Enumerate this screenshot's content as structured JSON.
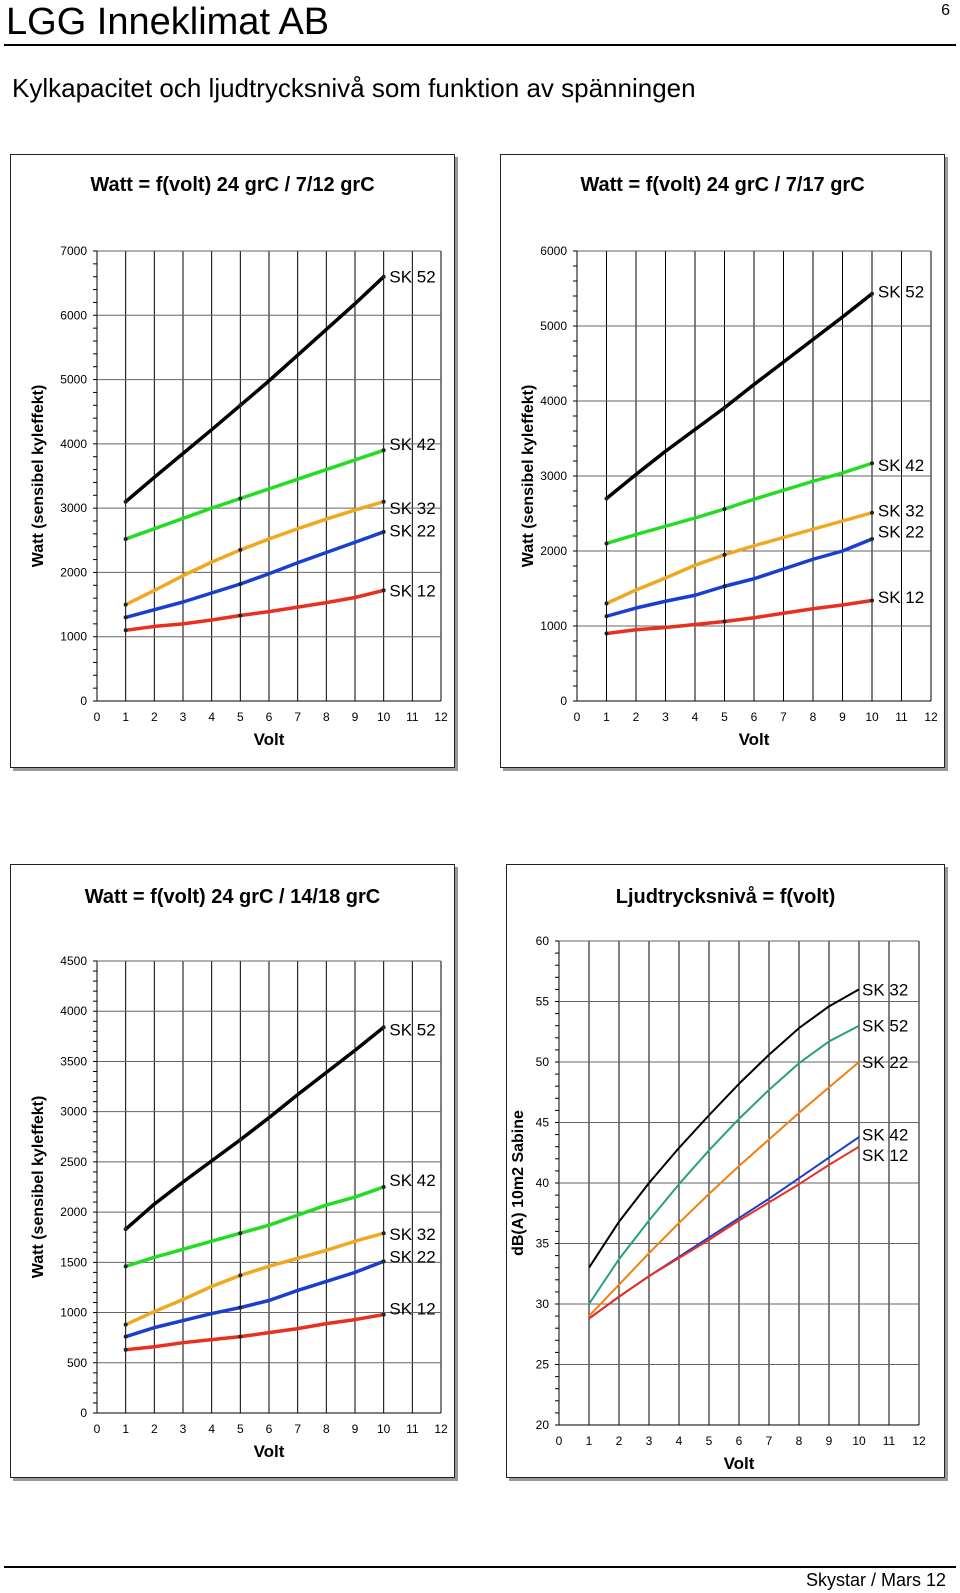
{
  "header": {
    "company": "LGG Inneklimat AB",
    "page_number": "6"
  },
  "subtitle": "Kylkapacitet och ljudtrycksnivå som funktion av spänningen",
  "footer": {
    "text": "Skystar / Mars 12"
  },
  "colors": {
    "SK 52": "#000000",
    "SK 42": "#22dd22",
    "SK 32": "#f0a820",
    "SK 22": "#1a3fd0",
    "SK 12": "#e83020",
    "noise_SK 32": "#000000",
    "noise_SK 52": "#2aa07a",
    "noise_SK 22": "#f08010",
    "noise_SK 42": "#1a3fd0",
    "noise_SK 12": "#e83020"
  },
  "chart_data": [
    {
      "type": "line",
      "title": "Watt = f(volt)  24 grC / 7/12 grC",
      "xlabel": "Volt",
      "ylabel": "Watt (sensibel kyleffekt)",
      "xlim": [
        0,
        12
      ],
      "ylim": [
        0,
        7000
      ],
      "xticks": [
        0,
        1,
        2,
        3,
        4,
        5,
        6,
        7,
        8,
        9,
        10,
        11,
        12
      ],
      "yticks": [
        0,
        1000,
        2000,
        3000,
        4000,
        5000,
        6000,
        7000
      ],
      "x": [
        1,
        2,
        3,
        4,
        5,
        6,
        7,
        8,
        9,
        10
      ],
      "series": [
        {
          "name": "SK 52",
          "values": [
            3100,
            3480,
            3850,
            4220,
            4600,
            4980,
            5380,
            5780,
            6180,
            6600
          ]
        },
        {
          "name": "SK 42",
          "values": [
            2520,
            2680,
            2840,
            3000,
            3150,
            3300,
            3450,
            3600,
            3750,
            3900
          ]
        },
        {
          "name": "SK 32",
          "values": [
            1500,
            1720,
            1950,
            2160,
            2350,
            2520,
            2680,
            2830,
            2970,
            3100
          ]
        },
        {
          "name": "SK 22",
          "values": [
            1300,
            1420,
            1540,
            1680,
            1820,
            1980,
            2150,
            2310,
            2470,
            2630
          ]
        },
        {
          "name": "SK 12",
          "values": [
            1100,
            1160,
            1200,
            1260,
            1330,
            1390,
            1460,
            1530,
            1610,
            1720
          ]
        }
      ],
      "labels": [
        {
          "text": "SK 52",
          "y": 6600
        },
        {
          "text": "SK 42",
          "y": 4000
        },
        {
          "text": "SK 32",
          "y": 3000
        },
        {
          "text": "SK 22",
          "y": 2650
        },
        {
          "text": "SK 12",
          "y": 1720
        }
      ]
    },
    {
      "type": "line",
      "title": "Watt = f(volt)  24 grC / 7/17 grC",
      "xlabel": "Volt",
      "ylabel": "Watt (sensibel kyleffekt)",
      "xlim": [
        0,
        12
      ],
      "ylim": [
        0,
        6000
      ],
      "xticks": [
        0,
        1,
        2,
        3,
        4,
        5,
        6,
        7,
        8,
        9,
        10,
        11,
        12
      ],
      "yticks": [
        0,
        1000,
        2000,
        3000,
        4000,
        5000,
        6000
      ],
      "x": [
        1,
        2,
        3,
        4,
        5,
        6,
        7,
        8,
        9,
        10
      ],
      "series": [
        {
          "name": "SK 52",
          "values": [
            2700,
            3020,
            3330,
            3620,
            3910,
            4220,
            4520,
            4820,
            5120,
            5430
          ]
        },
        {
          "name": "SK 42",
          "values": [
            2100,
            2220,
            2330,
            2440,
            2560,
            2690,
            2810,
            2930,
            3040,
            3170
          ]
        },
        {
          "name": "SK 32",
          "values": [
            1300,
            1480,
            1640,
            1810,
            1950,
            2070,
            2180,
            2290,
            2400,
            2510
          ]
        },
        {
          "name": "SK 22",
          "values": [
            1130,
            1240,
            1330,
            1410,
            1530,
            1630,
            1760,
            1890,
            2000,
            2160
          ]
        },
        {
          "name": "SK 12",
          "values": [
            900,
            950,
            980,
            1020,
            1060,
            1110,
            1170,
            1230,
            1280,
            1340
          ]
        }
      ],
      "labels": [
        {
          "text": "SK 52",
          "y": 5460
        },
        {
          "text": "SK 42",
          "y": 3150
        },
        {
          "text": "SK 32",
          "y": 2540
        },
        {
          "text": "SK 22",
          "y": 2260
        },
        {
          "text": "SK 12",
          "y": 1390
        }
      ]
    },
    {
      "type": "line",
      "title": "Watt = f(volt)  24 grC / 14/18 grC",
      "xlabel": "Volt",
      "ylabel": "Watt (sensibel kyleffekt)",
      "xlim": [
        0,
        12
      ],
      "ylim": [
        0,
        4500
      ],
      "xticks": [
        0,
        1,
        2,
        3,
        4,
        5,
        6,
        7,
        8,
        9,
        10,
        11,
        12
      ],
      "yticks": [
        0,
        500,
        1000,
        1500,
        2000,
        2500,
        3000,
        3500,
        4000,
        4500
      ],
      "x": [
        1,
        2,
        3,
        4,
        5,
        6,
        7,
        8,
        9,
        10
      ],
      "series": [
        {
          "name": "SK 52",
          "values": [
            1830,
            2080,
            2300,
            2510,
            2720,
            2940,
            3170,
            3390,
            3610,
            3840
          ]
        },
        {
          "name": "SK 42",
          "values": [
            1460,
            1550,
            1630,
            1710,
            1790,
            1870,
            1970,
            2070,
            2150,
            2250
          ]
        },
        {
          "name": "SK 32",
          "values": [
            880,
            1010,
            1130,
            1260,
            1370,
            1460,
            1540,
            1620,
            1710,
            1790
          ]
        },
        {
          "name": "SK 22",
          "values": [
            760,
            850,
            920,
            990,
            1050,
            1120,
            1220,
            1310,
            1400,
            1510
          ]
        },
        {
          "name": "SK 12",
          "values": [
            630,
            660,
            700,
            730,
            760,
            800,
            840,
            890,
            930,
            980
          ]
        }
      ],
      "labels": [
        {
          "text": "SK 52",
          "y": 3820
        },
        {
          "text": "SK 42",
          "y": 2320
        },
        {
          "text": "SK 32",
          "y": 1780
        },
        {
          "text": "SK 22",
          "y": 1560
        },
        {
          "text": "SK 12",
          "y": 1040
        }
      ]
    },
    {
      "type": "line",
      "title": "Ljudtrycksnivå = f(volt)",
      "xlabel": "Volt",
      "ylabel": "dB(A) 10m2 Sabine",
      "xlim": [
        0,
        12
      ],
      "ylim": [
        20,
        60
      ],
      "xticks": [
        0,
        1,
        2,
        3,
        4,
        5,
        6,
        7,
        8,
        9,
        10,
        11,
        12
      ],
      "yticks": [
        20,
        25,
        30,
        35,
        40,
        45,
        50,
        55,
        60
      ],
      "x": [
        1,
        2,
        3,
        4,
        5,
        6,
        7,
        8,
        9,
        10
      ],
      "series": [
        {
          "name": "SK 32",
          "values": [
            33,
            36.8,
            40,
            42.9,
            45.6,
            48.2,
            50.6,
            52.8,
            54.6,
            56
          ]
        },
        {
          "name": "SK 52",
          "values": [
            30,
            33.7,
            36.9,
            39.9,
            42.7,
            45.3,
            47.7,
            49.9,
            51.7,
            53
          ]
        },
        {
          "name": "SK 22",
          "values": [
            29,
            31.6,
            34.2,
            36.7,
            39.1,
            41.4,
            43.6,
            45.8,
            47.9,
            50
          ]
        },
        {
          "name": "SK 42",
          "values": [
            28.8,
            30.6,
            32.3,
            33.9,
            35.5,
            37.1,
            38.7,
            40.4,
            42.1,
            43.8
          ]
        },
        {
          "name": "SK 12",
          "values": [
            28.8,
            30.6,
            32.3,
            33.8,
            35.3,
            36.9,
            38.4,
            39.9,
            41.5,
            43
          ]
        }
      ],
      "labels": [
        {
          "text": "SK 32",
          "y": 56
        },
        {
          "text": "SK 52",
          "y": 53
        },
        {
          "text": "SK 22",
          "y": 50
        },
        {
          "text": "SK 42",
          "y": 44
        },
        {
          "text": "SK 12",
          "y": 42.3
        }
      ]
    }
  ]
}
